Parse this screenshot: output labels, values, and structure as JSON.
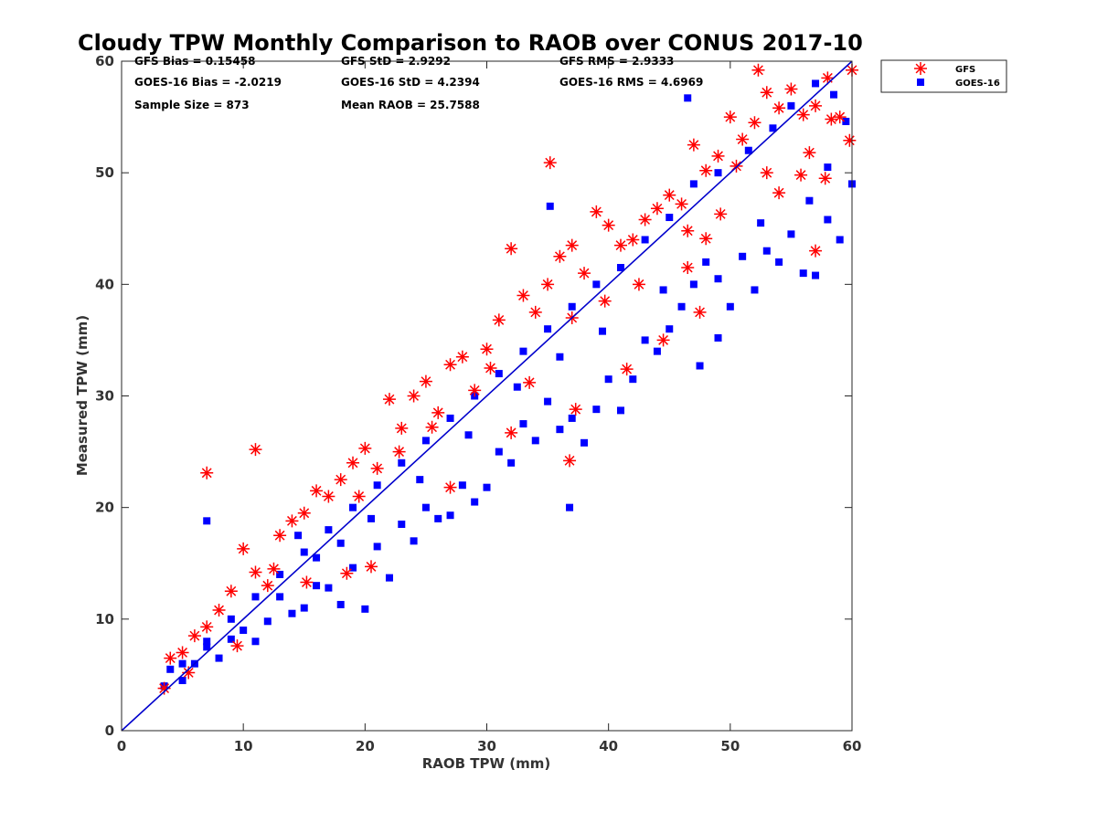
{
  "chart_data": {
    "type": "scatter",
    "title": "Cloudy TPW Monthly Comparison to RAOB over CONUS 2017-10",
    "xlabel": "RAOB TPW (mm)",
    "ylabel": "Measured TPW (mm)",
    "xlim": [
      0,
      60
    ],
    "ylim": [
      0,
      60
    ],
    "xticks": [
      "0",
      "10",
      "20",
      "30",
      "40",
      "50",
      "60"
    ],
    "yticks": [
      "0",
      "10",
      "20",
      "30",
      "40",
      "50",
      "60"
    ],
    "grid": false,
    "legend_position": "top-right outside",
    "reference_line": {
      "x": [
        0,
        60
      ],
      "y": [
        0,
        60
      ],
      "color": "#0000cc"
    },
    "stats": [
      [
        "GFS Bias = 0.15458",
        "GFS StD = 2.9292",
        "GFS RMS = 2.9333"
      ],
      [
        "GOES-16 Bias = -2.0219",
        "GOES-16 StD = 4.2394",
        "GOES-16 RMS = 4.6969"
      ],
      [
        "Sample Size = 873",
        "Mean RAOB = 25.7588"
      ]
    ],
    "series": [
      {
        "name": "GFS",
        "marker": "asterisk",
        "color": "#ff0000",
        "points": [
          [
            7,
            23.1
          ],
          [
            11,
            25.2
          ],
          [
            35.2,
            50.9
          ],
          [
            36.8,
            24.2
          ],
          [
            52.3,
            59.2
          ],
          [
            3.5,
            3.8
          ],
          [
            4,
            6.5
          ],
          [
            5,
            7
          ],
          [
            6,
            8.5
          ],
          [
            7,
            9.3
          ],
          [
            8,
            10.8
          ],
          [
            9,
            12.5
          ],
          [
            10,
            16.3
          ],
          [
            11,
            14.2
          ],
          [
            12,
            13
          ],
          [
            13,
            17.5
          ],
          [
            14,
            18.8
          ],
          [
            15,
            19.5
          ],
          [
            16,
            21.5
          ],
          [
            17,
            21
          ],
          [
            18,
            22.5
          ],
          [
            19,
            24
          ],
          [
            20,
            25.3
          ],
          [
            21,
            23.5
          ],
          [
            22,
            29.7
          ],
          [
            23,
            27.1
          ],
          [
            24,
            30
          ],
          [
            25,
            31.3
          ],
          [
            26,
            28.5
          ],
          [
            27,
            32.8
          ],
          [
            28,
            33.5
          ],
          [
            29,
            30.5
          ],
          [
            30,
            34.2
          ],
          [
            31,
            36.8
          ],
          [
            32,
            43.2
          ],
          [
            33,
            39
          ],
          [
            34,
            37.5
          ],
          [
            35,
            40
          ],
          [
            36,
            42.5
          ],
          [
            37,
            43.5
          ],
          [
            38,
            41
          ],
          [
            39,
            46.5
          ],
          [
            40,
            45.3
          ],
          [
            41,
            43.5
          ],
          [
            42,
            44
          ],
          [
            43,
            45.8
          ],
          [
            44,
            46.8
          ],
          [
            45,
            48
          ],
          [
            46,
            47.2
          ],
          [
            47,
            52.5
          ],
          [
            48,
            50.2
          ],
          [
            49,
            51.5
          ],
          [
            50,
            55
          ],
          [
            51,
            53
          ],
          [
            52,
            54.5
          ],
          [
            53,
            57.2
          ],
          [
            54,
            55.8
          ],
          [
            55,
            57.5
          ],
          [
            56,
            55.2
          ],
          [
            57,
            56
          ],
          [
            58,
            58.5
          ],
          [
            59,
            55
          ],
          [
            60,
            59.2
          ],
          [
            59.8,
            52.9
          ],
          [
            58.3,
            54.8
          ],
          [
            56.5,
            51.8
          ],
          [
            54,
            48.2
          ],
          [
            50.5,
            50.6
          ],
          [
            46.5,
            44.8
          ],
          [
            44.5,
            35
          ],
          [
            47.5,
            37.5
          ],
          [
            46.5,
            41.5
          ],
          [
            41.5,
            32.4
          ],
          [
            37.3,
            28.8
          ],
          [
            32,
            26.7
          ],
          [
            27,
            21.8
          ],
          [
            18.5,
            14.1
          ],
          [
            20.5,
            14.7
          ],
          [
            15.2,
            13.3
          ],
          [
            9.5,
            7.6
          ],
          [
            5.5,
            5.2
          ],
          [
            30.3,
            32.5
          ],
          [
            25.5,
            27.2
          ],
          [
            22.8,
            25
          ],
          [
            19.5,
            21
          ],
          [
            12.5,
            14.5
          ],
          [
            37,
            37
          ],
          [
            33.5,
            31.2
          ],
          [
            39.7,
            38.5
          ],
          [
            42.5,
            40
          ],
          [
            48,
            44.1
          ],
          [
            53,
            50
          ],
          [
            55.8,
            49.8
          ],
          [
            57.8,
            49.5
          ],
          [
            57,
            43
          ],
          [
            49.2,
            46.3
          ]
        ]
      },
      {
        "name": "GOES-16",
        "marker": "square",
        "color": "#0000ff",
        "points": [
          [
            7,
            18.8
          ],
          [
            36.8,
            20
          ],
          [
            35.2,
            47
          ],
          [
            46.5,
            56.7
          ],
          [
            47.5,
            32.7
          ],
          [
            49,
            35.2
          ],
          [
            3.5,
            4
          ],
          [
            4,
            5.5
          ],
          [
            5,
            4.5
          ],
          [
            6,
            6
          ],
          [
            7,
            7.5
          ],
          [
            8,
            6.5
          ],
          [
            9,
            8.2
          ],
          [
            10,
            9
          ],
          [
            11,
            8
          ],
          [
            12,
            9.8
          ],
          [
            13,
            12
          ],
          [
            14,
            10.5
          ],
          [
            15,
            11
          ],
          [
            16,
            13
          ],
          [
            17,
            12.8
          ],
          [
            18,
            11.3
          ],
          [
            19,
            14.6
          ],
          [
            20,
            10.9
          ],
          [
            21,
            16.5
          ],
          [
            22,
            13.7
          ],
          [
            23,
            18.5
          ],
          [
            24,
            17
          ],
          [
            25,
            20
          ],
          [
            26,
            19
          ],
          [
            27,
            19.3
          ],
          [
            28,
            22
          ],
          [
            29,
            20.5
          ],
          [
            30,
            21.8
          ],
          [
            31,
            25
          ],
          [
            32,
            24
          ],
          [
            33,
            27.5
          ],
          [
            34,
            26
          ],
          [
            35,
            29.5
          ],
          [
            36,
            27
          ],
          [
            37,
            28
          ],
          [
            38,
            25.8
          ],
          [
            39,
            28.8
          ],
          [
            40,
            31.5
          ],
          [
            41,
            28.7
          ],
          [
            42,
            31.5
          ],
          [
            43,
            35
          ],
          [
            44,
            34
          ],
          [
            45,
            36
          ],
          [
            46,
            38
          ],
          [
            47,
            40
          ],
          [
            48,
            42
          ],
          [
            49,
            40.5
          ],
          [
            50,
            38
          ],
          [
            51,
            42.5
          ],
          [
            52,
            39.5
          ],
          [
            53,
            43
          ],
          [
            54,
            42
          ],
          [
            55,
            44.5
          ],
          [
            56,
            41
          ],
          [
            57,
            40.8
          ],
          [
            58,
            45.8
          ],
          [
            59,
            44
          ],
          [
            60,
            49
          ],
          [
            59.5,
            54.6
          ],
          [
            58.5,
            57
          ],
          [
            57,
            58
          ],
          [
            55,
            56
          ],
          [
            53.5,
            54
          ],
          [
            51.5,
            52
          ],
          [
            49,
            50
          ],
          [
            47,
            49
          ],
          [
            45,
            46
          ],
          [
            43,
            44
          ],
          [
            41,
            41.5
          ],
          [
            39,
            40
          ],
          [
            37,
            38
          ],
          [
            35,
            36
          ],
          [
            33,
            34
          ],
          [
            31,
            32
          ],
          [
            29,
            30
          ],
          [
            27,
            28
          ],
          [
            25,
            26
          ],
          [
            23,
            24
          ],
          [
            21,
            22
          ],
          [
            19,
            20
          ],
          [
            17,
            18
          ],
          [
            15,
            16
          ],
          [
            13,
            14
          ],
          [
            11,
            12
          ],
          [
            9,
            10
          ],
          [
            7,
            8
          ],
          [
            5,
            6
          ],
          [
            14.5,
            17.5
          ],
          [
            16,
            15.5
          ],
          [
            18,
            16.8
          ],
          [
            20.5,
            19
          ],
          [
            24.5,
            22.5
          ],
          [
            28.5,
            26.5
          ],
          [
            32.5,
            30.8
          ],
          [
            36,
            33.5
          ],
          [
            39.5,
            35.8
          ],
          [
            44.5,
            39.5
          ],
          [
            52.5,
            45.5
          ],
          [
            56.5,
            47.5
          ],
          [
            58,
            50.5
          ]
        ]
      }
    ]
  }
}
